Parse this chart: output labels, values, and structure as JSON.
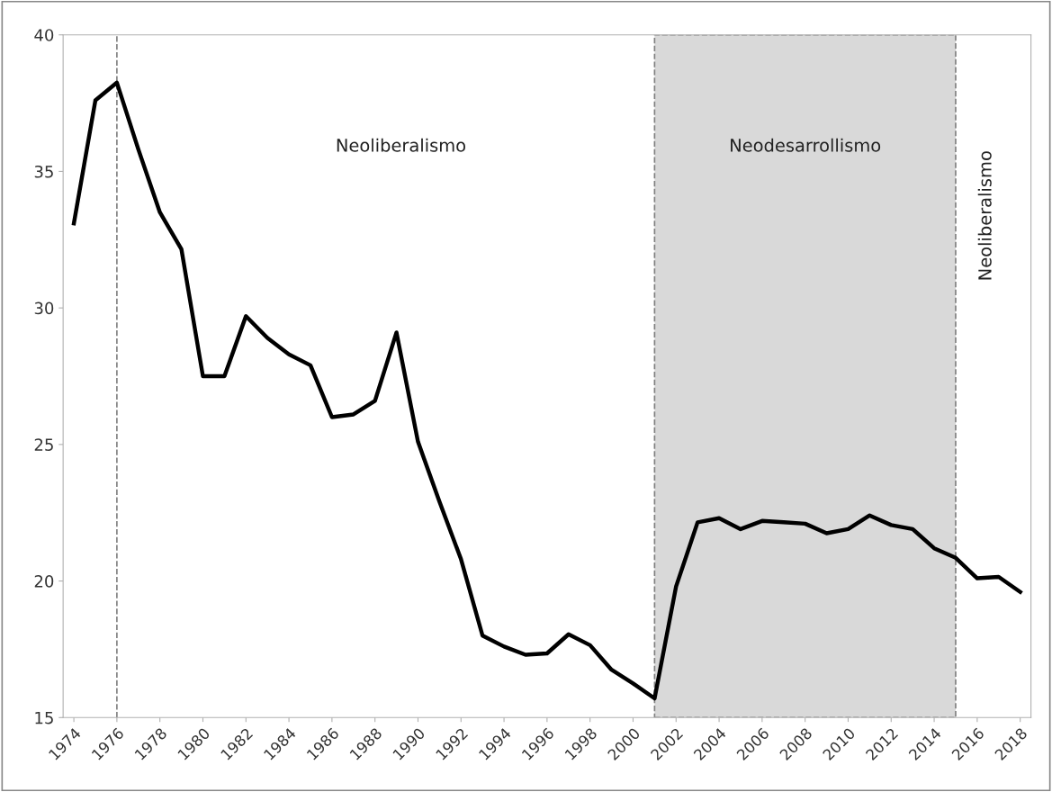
{
  "chart_data": {
    "type": "line",
    "x": [
      1974,
      1975,
      1976,
      1977,
      1978,
      1979,
      1980,
      1981,
      1982,
      1983,
      1984,
      1985,
      1986,
      1987,
      1988,
      1989,
      1990,
      1991,
      1992,
      1993,
      1994,
      1995,
      1996,
      1997,
      1998,
      1999,
      2000,
      2001,
      2002,
      2003,
      2004,
      2005,
      2006,
      2007,
      2008,
      2009,
      2010,
      2011,
      2012,
      2013,
      2014,
      2015,
      2016,
      2017,
      2018
    ],
    "series": [
      {
        "color": "#000000",
        "values": [
          33.1,
          37.6,
          38.25,
          35.8,
          33.5,
          32.15,
          27.5,
          27.5,
          29.7,
          28.9,
          28.3,
          27.9,
          26.0,
          26.1,
          26.6,
          29.1,
          25.1,
          22.9,
          20.8,
          18.0,
          17.6,
          17.3,
          17.35,
          18.05,
          17.65,
          16.75,
          16.25,
          15.7,
          19.8,
          22.15,
          22.3,
          21.9,
          22.2,
          22.15,
          22.1,
          21.75,
          21.9,
          22.4,
          22.05,
          21.9,
          21.2,
          20.85,
          20.1,
          20.15,
          19.6
        ]
      }
    ],
    "xlim": [
      1973.5,
      2018.5
    ],
    "xticks": [
      1974,
      1976,
      1978,
      1980,
      1982,
      1984,
      1986,
      1988,
      1990,
      1992,
      1994,
      1996,
      1998,
      2000,
      2002,
      2004,
      2006,
      2008,
      2010,
      2012,
      2014,
      2016,
      2018
    ],
    "ylim": [
      15,
      40
    ],
    "yticks": [
      15,
      20,
      25,
      30,
      35,
      40
    ],
    "ref_lines": [
      {
        "axis": "x",
        "value": 1976,
        "color": "#808080",
        "line_style": "dashed"
      }
    ],
    "bands": [
      {
        "axis": "x",
        "from": 2001,
        "to": 2015,
        "label": "Neodesarrollismo",
        "color": "#d9d9d9"
      }
    ],
    "annotations": [
      "Neoliberalismo",
      "Neoliberalismo"
    ],
    "grid": false,
    "legend": false,
    "marker": "none",
    "line_style": "solid"
  }
}
